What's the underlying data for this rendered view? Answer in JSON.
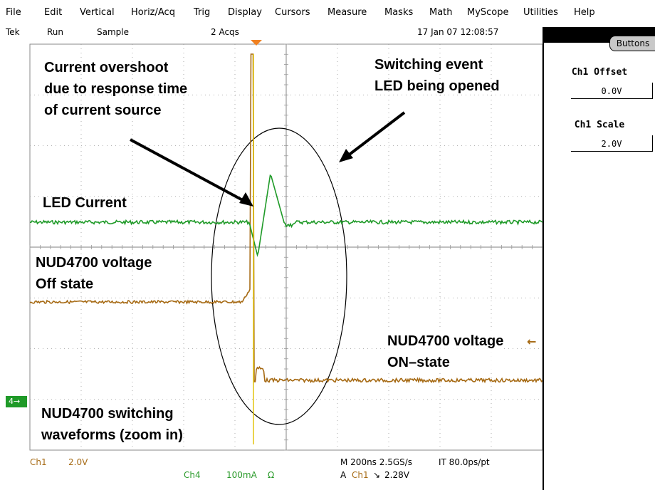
{
  "menu": [
    "File",
    "Edit",
    "Vertical",
    "Horiz/Acq",
    "Trig",
    "Display",
    "Cursors",
    "Measure",
    "Masks",
    "Math",
    "MyScope",
    "Utilities",
    "Help"
  ],
  "status": {
    "brand": "Tek",
    "run_state": "Run",
    "acq_mode": "Sample",
    "acq_count": "2 Acqs",
    "timestamp": "17 Jan 07 12:08:57"
  },
  "side_panel": {
    "buttons_tab": "Buttons",
    "offset_label": "Ch1 Offset",
    "offset_value": "0.0V",
    "scale_label": "Ch1 Scale",
    "scale_value": "2.0V"
  },
  "annotations": {
    "overshoot": "Current overshoot\ndue to response time\nof current source",
    "switching": "Switching event\nLED being opened",
    "led_current": "LED Current",
    "off_state": "NUD4700 voltage\nOff state",
    "on_state": "NUD4700 voltage\nON–state",
    "footer": "NUD4700 switching\nwaveforms (zoom in)"
  },
  "bottom": {
    "ch1_label": "Ch1",
    "ch1_scale": "2.0V",
    "ch4_label": "Ch4",
    "ch4_scale": "100mA",
    "ch4_coupling": "Ω",
    "timebase": "M 200ns 2.5GS/s",
    "record": "IT 80.0ps/pt",
    "trigger_prefix": "A",
    "trigger_source": "Ch1",
    "trigger_slope": "↘",
    "trigger_level": "2.28V"
  },
  "markers": {
    "ch4_marker": "4→",
    "ch1_level_marker": "←"
  },
  "colors": {
    "ch1_trace": "#a66a14",
    "ch4_trace": "#1f9a28",
    "trigger": "#f08020",
    "spike": "#e0c000",
    "grid": "#9a9a9a"
  }
}
